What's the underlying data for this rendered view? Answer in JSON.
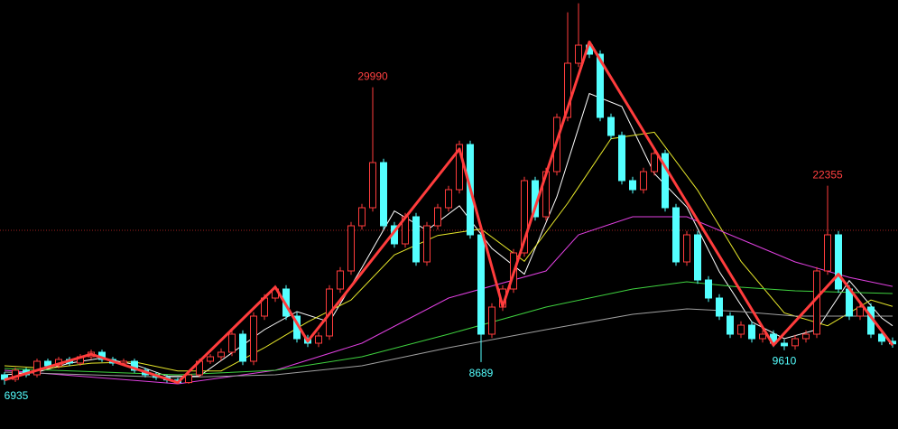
{
  "chart_data": {
    "type": "candlestick",
    "ylim": [
      3500,
      36750
    ],
    "up_color": "#ff3c3c",
    "down_color": "#54ffff",
    "open": [
      7700,
      7350,
      8050,
      7700,
      8750,
      8400,
      8890,
      8610,
      9100,
      9450,
      8890,
      8610,
      8750,
      8050,
      7700,
      7500,
      7300,
      7100,
      7700,
      8750,
      9100,
      9450,
      10850,
      8750,
      12250,
      13650,
      14350,
      12250,
      10500,
      10150,
      10710,
      14350,
      15750,
      19250,
      20650,
      24150,
      19250,
      17850,
      19950,
      16450,
      19250,
      20650,
      22050,
      25550,
      18550,
      10850,
      12950,
      14350,
      17150,
      22750,
      19950,
      23450,
      27650,
      31850,
      33250,
      32550,
      27650,
      26250,
      22750,
      22050,
      23450,
      24850,
      20650,
      16450,
      18550,
      15050,
      13650,
      12250,
      10850,
      11550,
      10500,
      10850,
      10150,
      9950,
      10500,
      10850,
      15750,
      18550,
      14350,
      12250,
      12950,
      10850,
      10300
    ],
    "high": [
      7900,
      8250,
      8250,
      8950,
      8950,
      9090,
      9090,
      9300,
      9650,
      9650,
      9090,
      8950,
      8950,
      8250,
      7900,
      7700,
      7500,
      7900,
      8950,
      9300,
      9750,
      11150,
      11150,
      12550,
      13950,
      14650,
      14650,
      12550,
      10800,
      11010,
      14650,
      16050,
      19550,
      20950,
      29990,
      24450,
      19550,
      20250,
      20250,
      19550,
      20950,
      22350,
      25850,
      25850,
      18850,
      13250,
      14650,
      17450,
      23050,
      23050,
      23750,
      27950,
      35800,
      36500,
      33550,
      32850,
      27950,
      26550,
      23050,
      23750,
      25150,
      25150,
      20950,
      18850,
      18850,
      15350,
      13950,
      12550,
      11850,
      11850,
      11150,
      11150,
      10450,
      10800,
      11150,
      16050,
      22355,
      18850,
      14650,
      13250,
      13250,
      11150,
      10600
    ],
    "low": [
      6935,
      7150,
      7500,
      7500,
      8200,
      8200,
      8410,
      8410,
      8900,
      8690,
      8410,
      8410,
      7850,
      7500,
      7300,
      7100,
      7000,
      7000,
      7500,
      8550,
      8800,
      9150,
      8450,
      8450,
      11950,
      13350,
      11950,
      10200,
      9850,
      9850,
      10410,
      14050,
      15450,
      18950,
      20350,
      18950,
      17550,
      17550,
      16150,
      16150,
      18950,
      20350,
      21750,
      18250,
      8689,
      10550,
      12650,
      14050,
      16850,
      19650,
      19650,
      23150,
      27350,
      31550,
      32250,
      27350,
      25950,
      22450,
      21750,
      21750,
      23150,
      20350,
      16150,
      16150,
      14750,
      13350,
      11950,
      10550,
      10550,
      10200,
      10200,
      9850,
      9610,
      9650,
      10200,
      10550,
      15450,
      14050,
      11950,
      11950,
      10550,
      10000,
      9800
    ],
    "close": [
      7350,
      8050,
      7700,
      8750,
      8400,
      8890,
      8610,
      9100,
      9450,
      8890,
      8610,
      8750,
      8050,
      7700,
      7500,
      7300,
      7100,
      7700,
      8750,
      9100,
      9450,
      10850,
      8750,
      12250,
      13650,
      14350,
      12250,
      10500,
      10150,
      10710,
      14350,
      15750,
      19250,
      20650,
      24150,
      19250,
      17850,
      19950,
      16450,
      19250,
      20650,
      22050,
      25550,
      18550,
      10850,
      12950,
      14350,
      17150,
      22750,
      19950,
      23450,
      27650,
      31850,
      33250,
      32550,
      27650,
      26250,
      22750,
      22050,
      23450,
      24850,
      20650,
      16450,
      18550,
      15050,
      13650,
      12250,
      10850,
      11550,
      10500,
      10850,
      10150,
      9950,
      10500,
      10850,
      15750,
      18550,
      14350,
      12250,
      12950,
      10850,
      10300,
      10100
    ],
    "lines": [
      {
        "color": "#ffffff",
        "x": [
          0,
          3,
          6,
          9,
          12,
          15,
          18,
          21,
          24,
          27,
          30,
          33,
          36,
          39,
          42,
          45,
          48,
          51,
          54,
          57,
          60,
          63,
          66,
          69,
          72,
          75,
          78,
          81,
          82
        ],
        "values": [
          7700,
          7900,
          8600,
          9000,
          8500,
          7600,
          7600,
          9400,
          11200,
          12600,
          11800,
          16000,
          20400,
          18900,
          20800,
          17500,
          15500,
          21500,
          29500,
          28500,
          23300,
          20700,
          15700,
          11800,
          10500,
          11200,
          15000,
          12100,
          11500
        ]
      },
      {
        "color": "#e6e62a",
        "x": [
          0,
          4,
          8,
          12,
          16,
          20,
          24,
          28,
          32,
          36,
          40,
          44,
          48,
          52,
          56,
          60,
          64,
          68,
          72,
          76,
          80,
          82
        ],
        "values": [
          8400,
          8200,
          8600,
          8700,
          8000,
          8000,
          9800,
          11800,
          13500,
          17000,
          18500,
          19000,
          16500,
          21000,
          26000,
          26500,
          22000,
          16500,
          12500,
          11500,
          13500,
          13000
        ]
      },
      {
        "color": "#e040e0",
        "x": [
          0,
          16,
          25,
          33,
          41,
          50,
          53,
          58,
          63,
          68,
          73,
          78,
          82
        ],
        "values": [
          8050,
          7000,
          8050,
          10150,
          13650,
          15750,
          18550,
          19950,
          19950,
          18200,
          16450,
          15250,
          14550
        ]
      },
      {
        "color": "#3fd23f",
        "x": [
          0,
          16,
          25,
          33,
          41,
          50,
          58,
          63,
          68,
          73,
          82
        ],
        "values": [
          8190,
          7700,
          8050,
          9100,
          10850,
          12950,
          14350,
          14910,
          14490,
          14210,
          14000
        ]
      },
      {
        "color": "#a0a0a0",
        "x": [
          0,
          16,
          25,
          33,
          41,
          50,
          58,
          63,
          68,
          73,
          82
        ],
        "values": [
          7910,
          7490,
          7700,
          8400,
          9800,
          11200,
          12390,
          12810,
          12600,
          12250,
          12250
        ]
      }
    ],
    "trend": {
      "color": "#ff3c3c",
      "x": [
        0,
        8,
        16,
        25,
        28,
        42,
        46,
        54,
        71,
        77,
        82
      ],
      "values": [
        7300,
        9300,
        7100,
        14500,
        10300,
        25200,
        13000,
        33500,
        10000,
        15500,
        10000
      ]
    },
    "reference_line": {
      "value": 18900,
      "color": "#a02020"
    },
    "annotations": [
      {
        "x": 34,
        "value": 29990,
        "kind": "high",
        "color": "#ff4040"
      },
      {
        "x": 76,
        "value": 22355,
        "kind": "high",
        "color": "#ff4040"
      },
      {
        "x": 44,
        "value": 8689,
        "kind": "low",
        "color": "#54ffff"
      },
      {
        "x": 72,
        "value": 9610,
        "kind": "low",
        "color": "#54ffff"
      },
      {
        "x": 0,
        "value": 6935,
        "kind": "low",
        "color": "#54ffff"
      }
    ]
  }
}
